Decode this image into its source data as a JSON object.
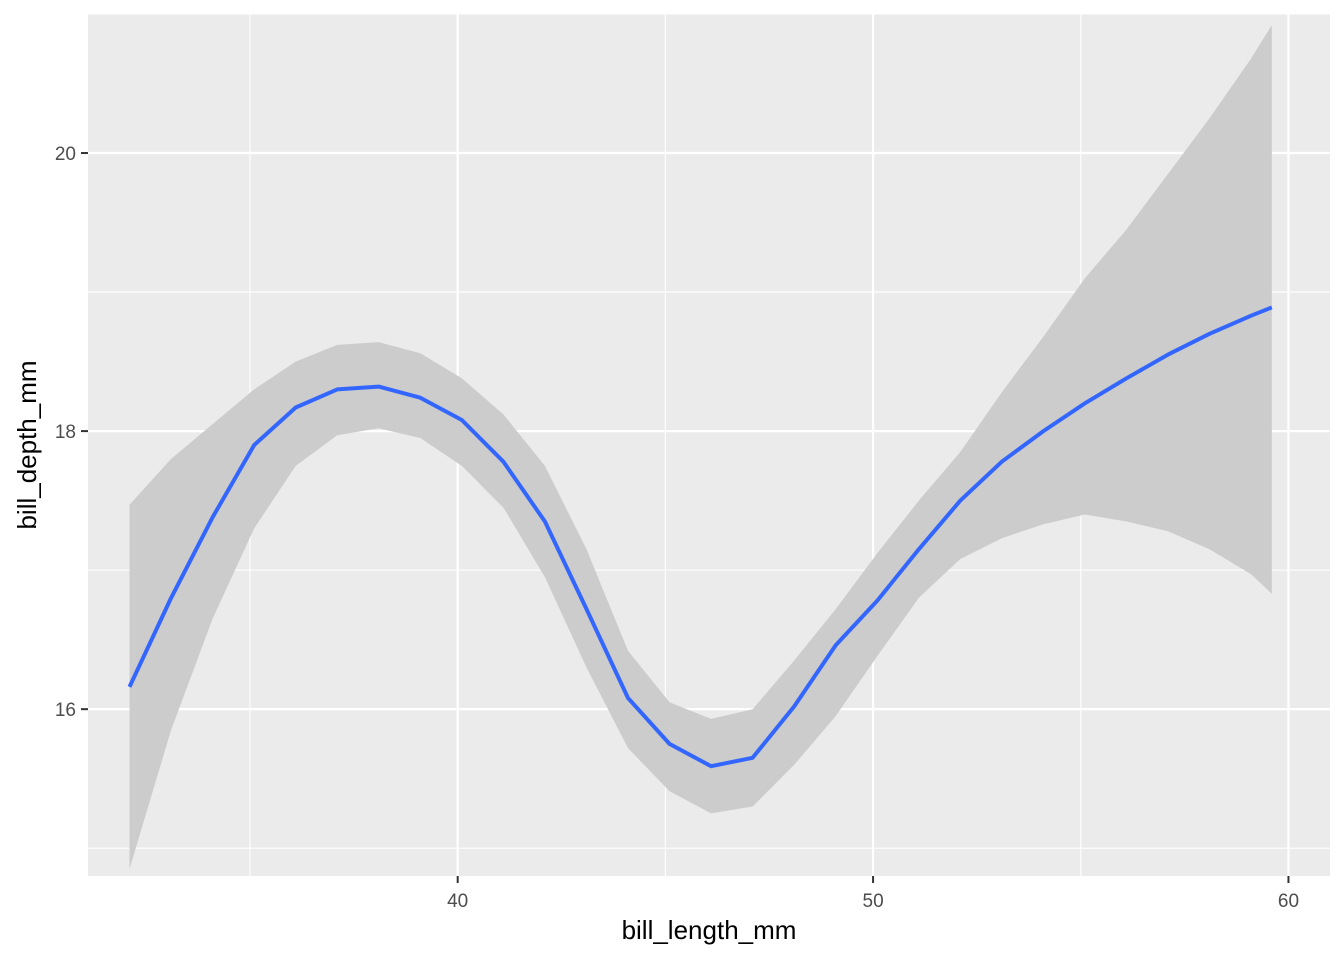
{
  "chart_data": {
    "type": "line",
    "title": "",
    "xlabel": "bill_length_mm",
    "ylabel": "bill_depth_mm",
    "xlim": [
      31.1,
      61.0
    ],
    "ylim": [
      14.8,
      21.0
    ],
    "x_ticks": [
      40,
      50,
      60
    ],
    "x_tick_labels": [
      "40",
      "50",
      "60"
    ],
    "y_ticks": [
      16,
      18,
      20
    ],
    "y_tick_labels": [
      "16",
      "18",
      "20"
    ],
    "grid": true,
    "legend": "none",
    "colors": {
      "panel": "#ebebeb",
      "grid": "#ffffff",
      "ribbon": "#cccccc",
      "line": "#3366ff"
    },
    "series": [
      {
        "smooth": "loess",
        "x": [
          32.1,
          33.1,
          34.1,
          35.1,
          36.1,
          37.1,
          38.1,
          39.1,
          40.1,
          41.1,
          42.1,
          43.1,
          44.1,
          45.1,
          46.1,
          47.1,
          48.1,
          49.1,
          50.1,
          51.1,
          52.1,
          53.1,
          54.1,
          55.1,
          56.1,
          57.1,
          58.1,
          59.1,
          59.6
        ],
        "y": [
          16.16,
          16.8,
          17.38,
          17.9,
          18.17,
          18.3,
          18.32,
          18.24,
          18.08,
          17.78,
          17.35,
          16.72,
          16.08,
          15.75,
          15.59,
          15.65,
          16.02,
          16.46,
          16.78,
          17.15,
          17.5,
          17.78,
          18.0,
          18.2,
          18.38,
          18.55,
          18.7,
          18.83,
          18.89
        ],
        "ymin": [
          14.85,
          15.85,
          16.65,
          17.3,
          17.75,
          17.97,
          18.02,
          17.95,
          17.75,
          17.45,
          16.95,
          16.3,
          15.72,
          15.41,
          15.25,
          15.3,
          15.6,
          15.95,
          16.38,
          16.8,
          17.08,
          17.23,
          17.33,
          17.4,
          17.35,
          17.28,
          17.15,
          16.97,
          16.83
        ],
        "ymax": [
          17.47,
          17.8,
          18.05,
          18.3,
          18.5,
          18.62,
          18.64,
          18.56,
          18.38,
          18.12,
          17.75,
          17.15,
          16.42,
          16.05,
          15.93,
          16.0,
          16.35,
          16.72,
          17.12,
          17.5,
          17.85,
          18.28,
          18.68,
          19.1,
          19.45,
          19.85,
          20.25,
          20.68,
          20.92
        ]
      }
    ]
  }
}
